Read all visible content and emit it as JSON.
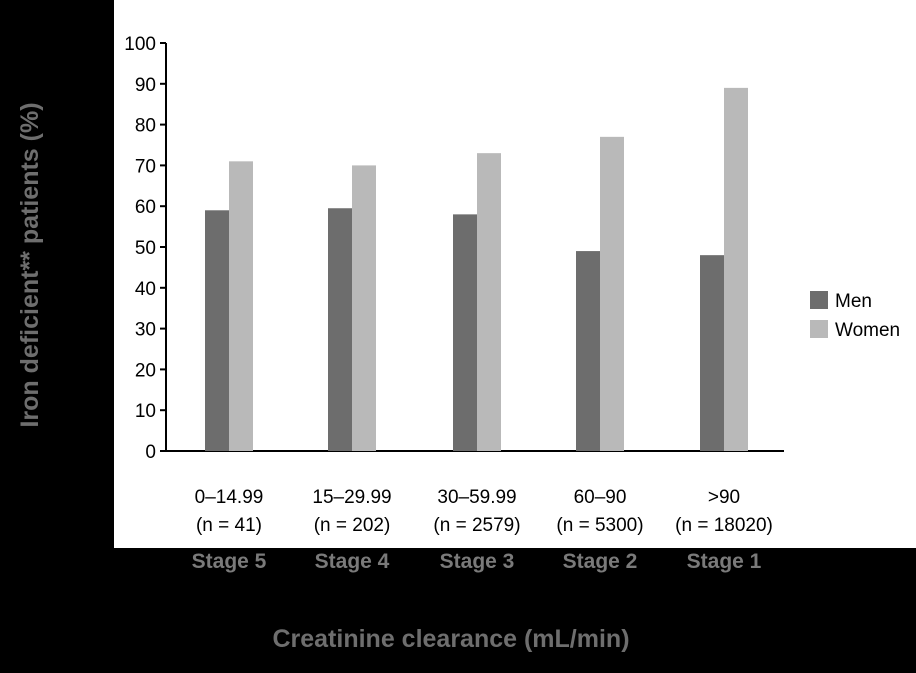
{
  "chart_data": {
    "type": "bar",
    "title": "",
    "ylabel": "Iron deficient** patients (%)",
    "xlabel": "Creatinine clearance (mL/min)",
    "ylim": [
      0,
      100
    ],
    "yticks": [
      0,
      10,
      20,
      30,
      40,
      50,
      60,
      70,
      80,
      90,
      100
    ],
    "categories": [
      {
        "range": "0–14.99",
        "n": "(n = 41)",
        "stage": "Stage 5"
      },
      {
        "range": "15–29.99",
        "n": "(n = 202)",
        "stage": "Stage 4"
      },
      {
        "range": "30–59.99",
        "n": "(n = 2579)",
        "stage": "Stage 3"
      },
      {
        "range": "60–90",
        "n": "(n = 5300)",
        "stage": "Stage 2"
      },
      {
        "range": ">90",
        "n": "(n = 18020)",
        "stage": "Stage 1"
      }
    ],
    "series": [
      {
        "name": "Men",
        "color": "#6d6d6d",
        "values": [
          59,
          59.5,
          58,
          49,
          48
        ]
      },
      {
        "name": "Women",
        "color": "#b9b9b9",
        "values": [
          71,
          70,
          73,
          77,
          89
        ]
      }
    ],
    "legend_position": "right",
    "grid": false
  }
}
